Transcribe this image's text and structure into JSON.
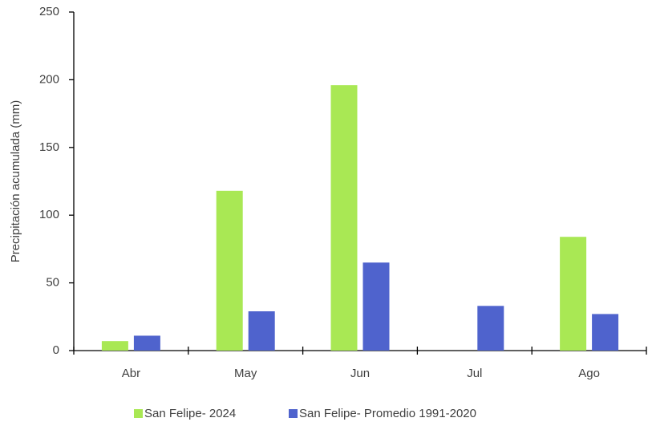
{
  "chart_data": {
    "type": "bar",
    "y_label": "Precipitación acumulada (mm)",
    "categories": [
      "Abr",
      "May",
      "Jun",
      "Jul",
      "Ago"
    ],
    "series": [
      {
        "name": "San Felipe- 2024",
        "color": "#a9e854",
        "values": [
          7,
          118,
          196,
          0,
          84
        ]
      },
      {
        "name": "San Felipe- Promedio 1991-2020",
        "color": "#4f63cd",
        "values": [
          11,
          29,
          65,
          33,
          27
        ]
      }
    ],
    "ylim": [
      0,
      250
    ],
    "yticks": [
      0,
      50,
      100,
      150,
      200,
      250
    ],
    "grid": false,
    "legend": "bottom"
  }
}
